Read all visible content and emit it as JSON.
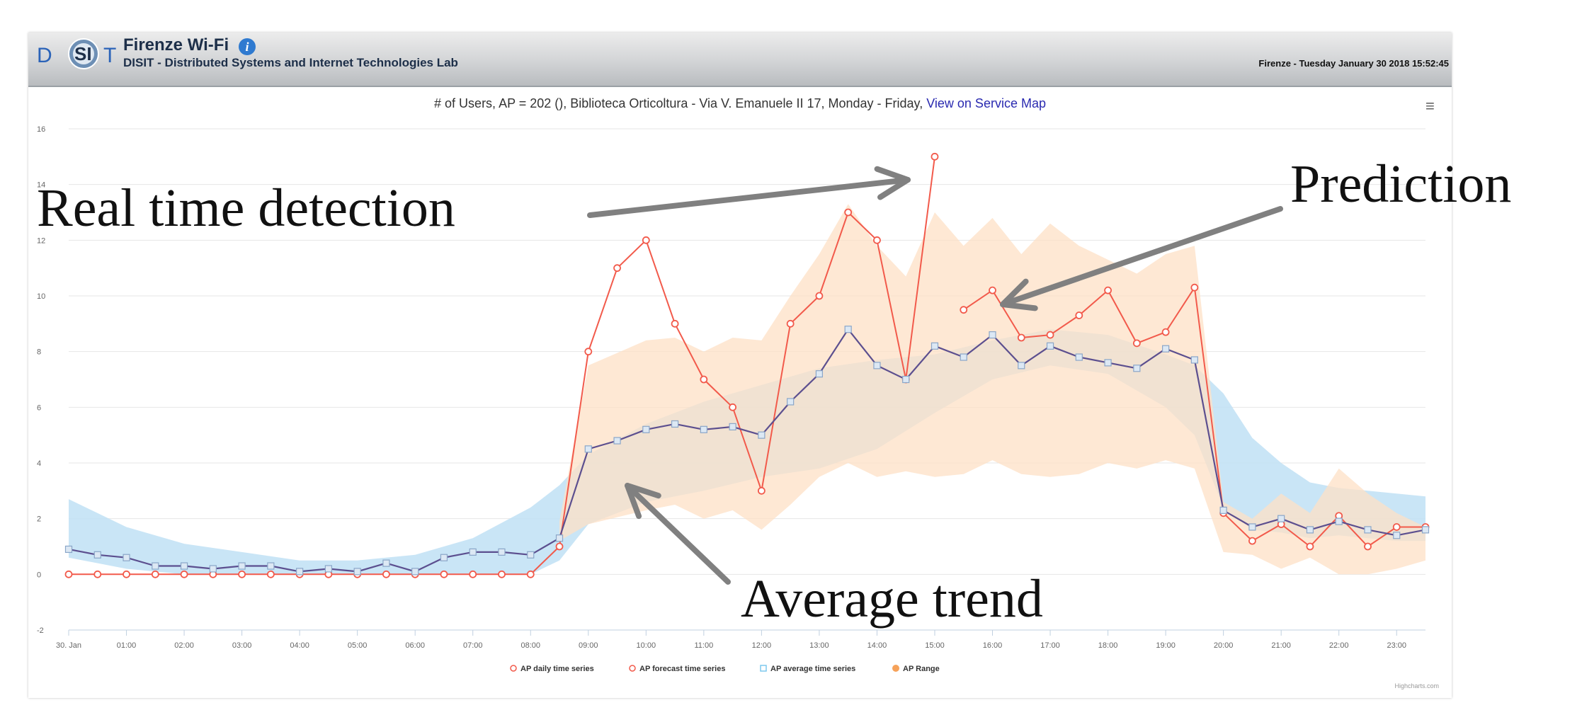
{
  "header": {
    "title": "Firenze Wi-Fi",
    "subtitle": "DISIT - Distributed Systems and Internet Technologies Lab",
    "datetime": "Firenze - Tuesday January 30 2018 15:52:45",
    "logo": {
      "prefix": "D",
      "mid": "SI",
      "suffix": "T"
    }
  },
  "annotations": {
    "real_time": "Real time detection",
    "prediction": "Prediction",
    "average": "Average trend"
  },
  "credits": "Highcharts.com",
  "colors": {
    "daily": "#f25a4b",
    "average": "#5c4f8f",
    "average_band": "#bfe0f5",
    "range": "#fde0c6",
    "arrow": "#808080"
  },
  "chart_data": {
    "type": "line",
    "title": "# of Users, AP = 202 (), Biblioteca Orticoltura - Via V. Emanuele II 17, Monday - Friday,",
    "title_link": "View on Service Map",
    "ylim": [
      -2,
      16
    ],
    "yticks": [
      -2,
      0,
      2,
      4,
      6,
      8,
      10,
      12,
      14,
      16
    ],
    "xlim": [
      0,
      23.5
    ],
    "xticks": [
      {
        "x": 0,
        "label": "30. Jan"
      },
      {
        "x": 1,
        "label": "01:00"
      },
      {
        "x": 2,
        "label": "02:00"
      },
      {
        "x": 3,
        "label": "03:00"
      },
      {
        "x": 4,
        "label": "04:00"
      },
      {
        "x": 5,
        "label": "05:00"
      },
      {
        "x": 6,
        "label": "06:00"
      },
      {
        "x": 7,
        "label": "07:00"
      },
      {
        "x": 8,
        "label": "08:00"
      },
      {
        "x": 9,
        "label": "09:00"
      },
      {
        "x": 10,
        "label": "10:00"
      },
      {
        "x": 11,
        "label": "11:00"
      },
      {
        "x": 12,
        "label": "12:00"
      },
      {
        "x": 13,
        "label": "13:00"
      },
      {
        "x": 14,
        "label": "14:00"
      },
      {
        "x": 15,
        "label": "15:00"
      },
      {
        "x": 16,
        "label": "16:00"
      },
      {
        "x": 17,
        "label": "17:00"
      },
      {
        "x": 18,
        "label": "18:00"
      },
      {
        "x": 19,
        "label": "19:00"
      },
      {
        "x": 20,
        "label": "20:00"
      },
      {
        "x": 21,
        "label": "21:00"
      },
      {
        "x": 22,
        "label": "22:00"
      },
      {
        "x": 23,
        "label": "23:00"
      }
    ],
    "legend": [
      {
        "name": "AP daily time series",
        "symbol": "circle",
        "color": "#f25a4b"
      },
      {
        "name": "AP forecast time series",
        "symbol": "diamond",
        "color": "#f25a4b"
      },
      {
        "name": "AP average time series",
        "symbol": "square",
        "color": "#7ec8ee"
      },
      {
        "name": "AP Range",
        "symbol": "dot",
        "color": "#f6a25a"
      }
    ],
    "series": [
      {
        "name": "AP daily time series",
        "x": [
          0,
          0.5,
          1,
          1.5,
          2,
          2.5,
          3,
          3.5,
          4,
          4.5,
          5,
          5.5,
          6,
          6.5,
          7,
          7.5,
          8,
          8.5,
          9,
          9.5,
          10,
          10.5,
          11,
          11.5,
          12,
          12.5,
          13,
          13.5,
          14,
          14.5,
          15
        ],
        "values": [
          0,
          0,
          0,
          0,
          0,
          0,
          0,
          0,
          0,
          0,
          0,
          0,
          0,
          0,
          0,
          0,
          0,
          1,
          8,
          11,
          12,
          9,
          7,
          6,
          3,
          9,
          10,
          13,
          12,
          7,
          15
        ]
      },
      {
        "name": "AP forecast time series",
        "x": [
          15.5,
          16,
          16.5,
          17,
          17.5,
          18,
          18.5,
          19,
          19.5,
          20,
          20.5,
          21,
          21.5,
          22,
          22.5,
          23,
          23.5
        ],
        "values": [
          9.5,
          10.2,
          8.5,
          8.6,
          9.3,
          10.2,
          8.3,
          8.7,
          10.3,
          2.2,
          1.2,
          1.8,
          1.0,
          2.1,
          1.0,
          1.7,
          1.7
        ]
      },
      {
        "name": "AP average time series",
        "x": [
          0,
          0.5,
          1,
          1.5,
          2,
          2.5,
          3,
          3.5,
          4,
          4.5,
          5,
          5.5,
          6,
          6.5,
          7,
          7.5,
          8,
          8.5,
          9,
          9.5,
          10,
          10.5,
          11,
          11.5,
          12,
          12.5,
          13,
          13.5,
          14,
          14.5,
          15,
          15.5,
          16,
          16.5,
          17,
          17.5,
          18,
          18.5,
          19,
          19.5,
          20,
          20.5,
          21,
          21.5,
          22,
          22.5,
          23,
          23.5
        ],
        "values": [
          0.9,
          0.7,
          0.6,
          0.3,
          0.3,
          0.2,
          0.3,
          0.3,
          0.1,
          0.2,
          0.1,
          0.4,
          0.1,
          0.6,
          0.8,
          0.8,
          0.7,
          1.3,
          4.5,
          4.8,
          5.2,
          5.4,
          5.2,
          5.3,
          5.0,
          6.2,
          7.2,
          8.8,
          7.5,
          7.0,
          8.2,
          7.8,
          8.6,
          7.5,
          8.2,
          7.8,
          7.6,
          7.4,
          8.1,
          7.7,
          2.3,
          1.7,
          2.0,
          1.6,
          1.9,
          1.6,
          1.4,
          1.6
        ]
      }
    ],
    "average_band": {
      "x": [
        0,
        1,
        2,
        3,
        4,
        5,
        6,
        7,
        8,
        8.5,
        9,
        10,
        11,
        12,
        13,
        14,
        15,
        16,
        17,
        18,
        19,
        19.5,
        20,
        20.5,
        21,
        21.5,
        22,
        22.5,
        23,
        23.5
      ],
      "low": [
        0.6,
        0.2,
        0,
        0,
        0,
        0,
        0,
        0,
        0,
        0.5,
        1.8,
        2.6,
        3.0,
        3.5,
        3.8,
        4.5,
        5.8,
        7.0,
        7.5,
        7.2,
        6.0,
        5.0,
        2.4,
        1.6,
        1.5,
        1.3,
        1.4,
        1.3,
        1.2,
        1.2
      ],
      "high": [
        2.7,
        1.7,
        1.1,
        0.8,
        0.5,
        0.5,
        0.7,
        1.3,
        2.4,
        3.2,
        4.3,
        5.4,
        6.2,
        6.8,
        7.4,
        7.7,
        7.9,
        8.4,
        8.8,
        8.6,
        7.9,
        7.5,
        6.5,
        4.9,
        4.0,
        3.3,
        3.1,
        3.0,
        2.9,
        2.8
      ]
    },
    "range": {
      "x": [
        8.5,
        9,
        10,
        10.5,
        11,
        11.5,
        12,
        12.5,
        13,
        13.5,
        14,
        14.5,
        15,
        15.5,
        16,
        16.5,
        17,
        17.5,
        18,
        18.5,
        19,
        19.5,
        20,
        20.5,
        21,
        21.5,
        22,
        22.5,
        23,
        23.5
      ],
      "low": [
        1.2,
        1.8,
        2.3,
        2.5,
        2.0,
        2.3,
        1.6,
        2.5,
        3.5,
        4.0,
        3.5,
        3.7,
        3.5,
        3.6,
        4.1,
        3.6,
        3.5,
        3.6,
        4.0,
        3.8,
        4.1,
        3.8,
        0.8,
        0.7,
        0.2,
        0.6,
        0,
        0,
        0.2,
        0.5
      ],
      "high": [
        1.9,
        7.5,
        8.4,
        8.5,
        8.0,
        8.5,
        8.4,
        10.0,
        11.5,
        13.3,
        11.8,
        10.7,
        13.0,
        11.8,
        12.8,
        11.5,
        12.6,
        11.8,
        11.3,
        10.8,
        11.5,
        11.8,
        2.6,
        2.0,
        2.9,
        2.2,
        3.8,
        2.9,
        2.2,
        1.7
      ]
    }
  }
}
